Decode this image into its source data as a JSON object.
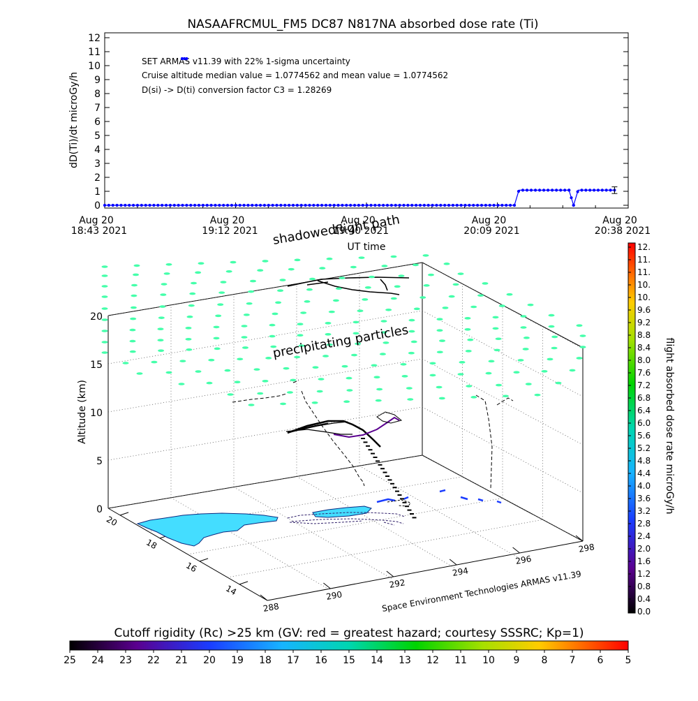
{
  "chart_data": [
    {
      "type": "line",
      "title": "NASAAFRCMUL_FM5 DC87 N817NA absorbed dose rate (Ti)",
      "ylabel": "dD(Ti)/dt microGy/h",
      "xlabel": "UT time",
      "ylim": [
        0,
        12
      ],
      "y_ticks": [
        "0",
        "1",
        "2",
        "3",
        "4",
        "5",
        "6",
        "7",
        "8",
        "9",
        "10",
        "11",
        "12"
      ],
      "x_ticks": [
        {
          "date": "Aug 20",
          "time": "18:43 2021"
        },
        {
          "date": "Aug 20",
          "time": "19:12 2021"
        },
        {
          "date": "Aug 20",
          "time": "19:40 2021"
        },
        {
          "date": "Aug 20",
          "time": "20:09 2021"
        },
        {
          "date": "Aug 20",
          "time": "20:38 2021"
        }
      ],
      "xlim_minutes": [
        0,
        115
      ],
      "annotations": [
        "SET ARMAS v11.39 with 22% 1-sigma uncertainty",
        "Cruise altitude median value = 1.0774562 and mean value = 1.0774562",
        "D(si) -> D(ti) conversion factor C3 = 1.28269"
      ],
      "series": [
        {
          "segments": [
            {
              "x": [
                17,
                18
              ],
              "y": [
                10.5,
                10.5
              ]
            },
            {
              "x": [
                0,
                21,
                40,
                60,
                80,
                90
              ],
              "y": [
                0,
                0,
                0,
                0,
                0,
                0
              ]
            },
            {
              "x": [
                90,
                91,
                95,
                100,
                102
              ],
              "y": [
                0,
                1.08,
                1.08,
                1.08,
                1.08
              ]
            },
            {
              "x": [
                102,
                103
              ],
              "y": [
                1.08,
                0
              ]
            },
            {
              "x": [
                103,
                104,
                108,
                112
              ],
              "y": [
                0,
                1.08,
                1.08,
                1.08
              ]
            }
          ]
        }
      ],
      "error_bar": {
        "x": 112,
        "y": 1.08,
        "err": 0.24
      },
      "color": "#0000ff"
    },
    {
      "type": "scatter",
      "labels": {
        "flight_path": "flight path",
        "shadowed": "shadowed",
        "precipitating": "precipitating particles"
      },
      "ylabel": "Altitude (km)",
      "z_ticks": [
        "0",
        "5",
        "10",
        "15",
        "20"
      ],
      "zlim": [
        0,
        20
      ],
      "lat_ticks": [
        "20",
        "18",
        "16",
        "14"
      ],
      "lon_ticks": [
        "288",
        "290",
        "292",
        "294",
        "296",
        "298"
      ],
      "credit": "Space Environment Technologies ARMAS v11.39",
      "colorbar": {
        "label": "flight absorbed dose rate microGy/h",
        "ticks": [
          "12.",
          "11.",
          "11.",
          "10.",
          "10.",
          "9.6",
          "9.2",
          "8.8",
          "8.4",
          "8.0",
          "7.6",
          "7.2",
          "6.8",
          "6.4",
          "6.0",
          "5.6",
          "5.2",
          "4.8",
          "4.4",
          "4.0",
          "3.6",
          "3.2",
          "2.8",
          "2.4",
          "2.0",
          "1.6",
          "1.2",
          "0.8",
          "0.4",
          "0.0"
        ]
      },
      "particle_color": "#44ffaa",
      "land_color": "#44ddff"
    },
    {
      "type": "heatmap",
      "title": "Cutoff rigidity (Rc) >25 km (GV: red = greatest hazard; courtesy SSSRC; Kp=1)",
      "ticks": [
        "25",
        "24",
        "23",
        "22",
        "21",
        "20",
        "19",
        "18",
        "17",
        "16",
        "15",
        "14",
        "13",
        "12",
        "11",
        "10",
        "9",
        "8",
        "7",
        "6",
        "5"
      ]
    }
  ]
}
